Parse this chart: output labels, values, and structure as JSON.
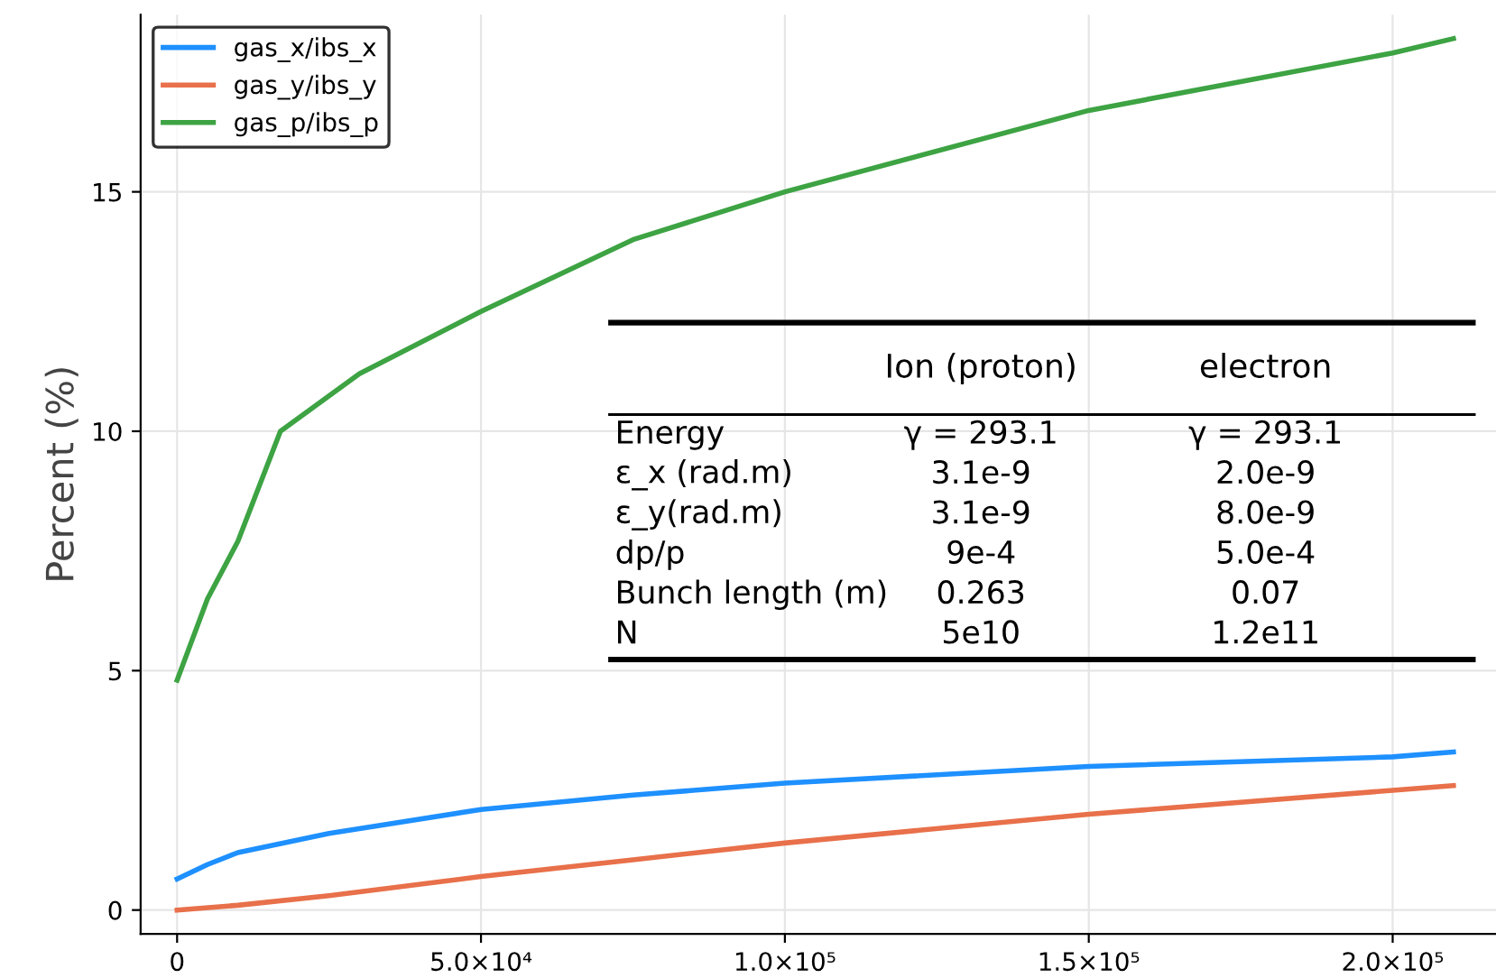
{
  "chart_data": {
    "type": "line",
    "ylabel": "Percent (%)",
    "xlim": [
      -6000,
      217000
    ],
    "ylim": [
      -0.5,
      18.7
    ],
    "xticks": [
      0,
      {
        "value": 50000,
        "label": "5.0×10⁴"
      },
      {
        "value": 100000,
        "label": "1.0×10⁵"
      },
      {
        "value": 150000,
        "label": "1.5×10⁵"
      },
      {
        "value": 200000,
        "label": "2.0×10⁵"
      }
    ],
    "yticks": [
      0,
      5,
      10,
      15
    ],
    "grid": true,
    "legend": "top left",
    "line_style": "solid",
    "marker": "none",
    "series": [
      {
        "name": "gas_x/ibs_x",
        "color": "#1e90ff",
        "x": [
          0,
          5000,
          10000,
          25000,
          50000,
          75000,
          100000,
          150000,
          200000,
          210000
        ],
        "values": [
          0.65,
          0.95,
          1.2,
          1.6,
          2.1,
          2.4,
          2.65,
          3.0,
          3.2,
          3.3
        ]
      },
      {
        "name": "gas_y/ibs_y",
        "color": "#e8704a",
        "x": [
          0,
          10000,
          25000,
          50000,
          75000,
          100000,
          150000,
          200000,
          210000
        ],
        "values": [
          0,
          0.1,
          0.3,
          0.7,
          1.05,
          1.4,
          2.0,
          2.5,
          2.6
        ]
      },
      {
        "name": "gas_p/ibs_p",
        "color": "#3da343",
        "x": [
          0,
          5000,
          10000,
          17000,
          30000,
          50000,
          75000,
          100000,
          150000,
          200000,
          210000
        ],
        "values": [
          4.8,
          6.5,
          7.7,
          10.0,
          11.2,
          12.5,
          14.0,
          15.0,
          16.7,
          17.9,
          18.2
        ]
      }
    ],
    "annotations": [
      "Ion (proton)",
      "electron",
      "Energy",
      "γ = 293.1",
      "γ = 293.1",
      "ε_x (rad.m)",
      "3.1e-9",
      "2.0e-9",
      "ε_y(rad.m)",
      "3.1e-9",
      "8.0e-9",
      "dp/p",
      "9e-4",
      "5.0e-4",
      "Bunch length (m)",
      "0.263",
      "0.07",
      "N",
      "5e10",
      "1.2e11"
    ]
  }
}
